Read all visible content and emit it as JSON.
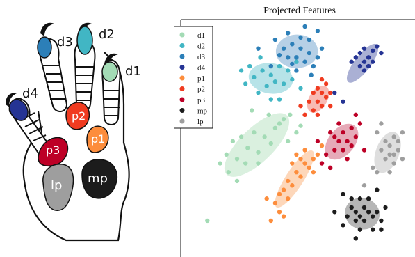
{
  "paw": {
    "labels": {
      "d1": "d1",
      "d2": "d2",
      "d3": "d3",
      "d4": "d4",
      "p1": "p1",
      "p2": "p2",
      "p3": "p3",
      "lp": "lp",
      "mp": "mp"
    }
  },
  "chart_data": {
    "type": "scatter",
    "title": "Projected Features",
    "xlabel": "",
    "ylabel": "",
    "grid": false,
    "legend_position": "top-left",
    "series": [
      {
        "name": "d1",
        "color": "#a3dbb5",
        "ellipse_color": "#cdebd4",
        "points": [
          [
            0.18,
            0.52
          ],
          [
            0.22,
            0.5
          ],
          [
            0.25,
            0.55
          ],
          [
            0.28,
            0.48
          ],
          [
            0.2,
            0.6
          ],
          [
            0.3,
            0.57
          ],
          [
            0.33,
            0.5
          ],
          [
            0.36,
            0.53
          ],
          [
            0.38,
            0.46
          ],
          [
            0.4,
            0.44
          ],
          [
            0.15,
            0.58
          ],
          [
            0.12,
            0.62
          ],
          [
            0.24,
            0.62
          ],
          [
            0.3,
            0.62
          ],
          [
            0.42,
            0.42
          ],
          [
            0.45,
            0.4
          ],
          [
            0.48,
            0.48
          ],
          [
            0.44,
            0.52
          ],
          [
            0.35,
            0.4
          ],
          [
            0.27,
            0.38
          ],
          [
            0.06,
            0.88
          ],
          [
            0.5,
            0.45
          ],
          [
            0.16,
            0.66
          ],
          [
            0.2,
            0.7
          ]
        ]
      },
      {
        "name": "d2",
        "color": "#41b6c4",
        "ellipse_color": "#9fd9e0",
        "points": [
          [
            0.28,
            0.23
          ],
          [
            0.32,
            0.2
          ],
          [
            0.36,
            0.22
          ],
          [
            0.4,
            0.18
          ],
          [
            0.44,
            0.2
          ],
          [
            0.46,
            0.24
          ],
          [
            0.34,
            0.27
          ],
          [
            0.3,
            0.3
          ],
          [
            0.38,
            0.25
          ],
          [
            0.42,
            0.26
          ],
          [
            0.26,
            0.18
          ],
          [
            0.48,
            0.16
          ],
          [
            0.36,
            0.33
          ],
          [
            0.4,
            0.33
          ],
          [
            0.24,
            0.26
          ],
          [
            0.31,
            0.14
          ],
          [
            0.22,
            0.2
          ],
          [
            0.5,
            0.28
          ]
        ]
      },
      {
        "name": "d3",
        "color": "#2c7fb8",
        "ellipse_color": "#9ec0dd",
        "points": [
          [
            0.42,
            0.1
          ],
          [
            0.46,
            0.08
          ],
          [
            0.5,
            0.1
          ],
          [
            0.54,
            0.12
          ],
          [
            0.48,
            0.14
          ],
          [
            0.44,
            0.14
          ],
          [
            0.52,
            0.16
          ],
          [
            0.56,
            0.18
          ],
          [
            0.4,
            0.13
          ],
          [
            0.5,
            0.05
          ],
          [
            0.58,
            0.14
          ],
          [
            0.46,
            0.17
          ],
          [
            0.54,
            0.06
          ],
          [
            0.38,
            0.06
          ],
          [
            0.6,
            0.1
          ],
          [
            0.44,
            0.03
          ],
          [
            0.52,
            0.0
          ],
          [
            0.58,
            0.02
          ],
          [
            0.36,
            0.18
          ],
          [
            0.3,
            0.1
          ],
          [
            0.48,
            0.2
          ],
          [
            0.55,
            0.22
          ]
        ]
      },
      {
        "name": "d4",
        "color": "#253494",
        "ellipse_color": "#8e96c6",
        "points": [
          [
            0.76,
            0.14
          ],
          [
            0.78,
            0.12
          ],
          [
            0.8,
            0.16
          ],
          [
            0.82,
            0.14
          ],
          [
            0.84,
            0.11
          ],
          [
            0.86,
            0.09
          ],
          [
            0.78,
            0.18
          ],
          [
            0.8,
            0.2
          ],
          [
            0.82,
            0.18
          ],
          [
            0.84,
            0.16
          ],
          [
            0.88,
            0.12
          ],
          [
            0.74,
            0.16
          ],
          [
            0.8,
            0.1
          ],
          [
            0.7,
            0.34
          ],
          [
            0.66,
            0.3
          ]
        ]
      },
      {
        "name": "p1",
        "color": "#fd8d3c",
        "ellipse_color": "#fcc9a3",
        "points": [
          [
            0.48,
            0.58
          ],
          [
            0.5,
            0.6
          ],
          [
            0.52,
            0.62
          ],
          [
            0.54,
            0.64
          ],
          [
            0.56,
            0.6
          ],
          [
            0.58,
            0.58
          ],
          [
            0.44,
            0.7
          ],
          [
            0.46,
            0.72
          ],
          [
            0.48,
            0.66
          ],
          [
            0.5,
            0.68
          ],
          [
            0.42,
            0.74
          ],
          [
            0.4,
            0.76
          ],
          [
            0.44,
            0.78
          ],
          [
            0.38,
            0.8
          ],
          [
            0.4,
            0.84
          ],
          [
            0.42,
            0.86
          ],
          [
            0.36,
            0.88
          ],
          [
            0.52,
            0.56
          ],
          [
            0.46,
            0.62
          ],
          [
            0.56,
            0.66
          ],
          [
            0.34,
            0.78
          ],
          [
            0.6,
            0.54
          ]
        ]
      },
      {
        "name": "p2",
        "color": "#f03b20",
        "ellipse_color": "#f5a399",
        "points": [
          [
            0.56,
            0.3
          ],
          [
            0.58,
            0.28
          ],
          [
            0.6,
            0.3
          ],
          [
            0.62,
            0.26
          ],
          [
            0.58,
            0.34
          ],
          [
            0.6,
            0.36
          ],
          [
            0.54,
            0.34
          ],
          [
            0.56,
            0.38
          ],
          [
            0.62,
            0.32
          ],
          [
            0.64,
            0.3
          ],
          [
            0.52,
            0.4
          ],
          [
            0.6,
            0.24
          ],
          [
            0.58,
            0.4
          ],
          [
            0.5,
            0.36
          ],
          [
            0.64,
            0.36
          ]
        ]
      },
      {
        "name": "p3",
        "color": "#bd0026",
        "ellipse_color": "#dd8da0",
        "points": [
          [
            0.66,
            0.5
          ],
          [
            0.68,
            0.52
          ],
          [
            0.7,
            0.48
          ],
          [
            0.72,
            0.52
          ],
          [
            0.74,
            0.54
          ],
          [
            0.7,
            0.56
          ],
          [
            0.66,
            0.56
          ],
          [
            0.62,
            0.58
          ],
          [
            0.64,
            0.48
          ],
          [
            0.68,
            0.44
          ],
          [
            0.74,
            0.46
          ],
          [
            0.76,
            0.5
          ],
          [
            0.6,
            0.62
          ],
          [
            0.72,
            0.6
          ],
          [
            0.78,
            0.44
          ],
          [
            0.58,
            0.52
          ],
          [
            0.64,
            0.64
          ],
          [
            0.76,
            0.4
          ],
          [
            0.8,
            0.56
          ]
        ]
      },
      {
        "name": "mp",
        "color": "#1c1c1c",
        "ellipse_color": "#9e9e9e",
        "points": [
          [
            0.74,
            0.82
          ],
          [
            0.76,
            0.84
          ],
          [
            0.78,
            0.86
          ],
          [
            0.8,
            0.82
          ],
          [
            0.82,
            0.84
          ],
          [
            0.76,
            0.88
          ],
          [
            0.8,
            0.88
          ],
          [
            0.84,
            0.86
          ],
          [
            0.72,
            0.86
          ],
          [
            0.86,
            0.84
          ],
          [
            0.74,
            0.78
          ],
          [
            0.78,
            0.78
          ],
          [
            0.82,
            0.78
          ],
          [
            0.88,
            0.88
          ],
          [
            0.7,
            0.9
          ],
          [
            0.78,
            0.92
          ],
          [
            0.84,
            0.92
          ],
          [
            0.66,
            0.84
          ],
          [
            0.9,
            0.82
          ],
          [
            0.76,
            0.96
          ],
          [
            0.86,
            0.74
          ],
          [
            0.7,
            0.76
          ],
          [
            0.88,
            0.92
          ]
        ]
      },
      {
        "name": "lp",
        "color": "#9e9e9e",
        "ellipse_color": "#d3d3d3",
        "points": [
          [
            0.9,
            0.52
          ],
          [
            0.92,
            0.54
          ],
          [
            0.94,
            0.5
          ],
          [
            0.96,
            0.52
          ],
          [
            0.92,
            0.58
          ],
          [
            0.94,
            0.58
          ],
          [
            0.96,
            0.56
          ],
          [
            0.9,
            0.6
          ],
          [
            0.88,
            0.56
          ],
          [
            0.98,
            0.48
          ],
          [
            0.94,
            0.62
          ],
          [
            0.86,
            0.48
          ],
          [
            0.98,
            0.6
          ],
          [
            0.84,
            0.64
          ],
          [
            0.92,
            0.66
          ],
          [
            0.8,
            0.72
          ],
          [
            0.86,
            0.66
          ],
          [
            0.88,
            0.44
          ]
        ]
      }
    ]
  }
}
